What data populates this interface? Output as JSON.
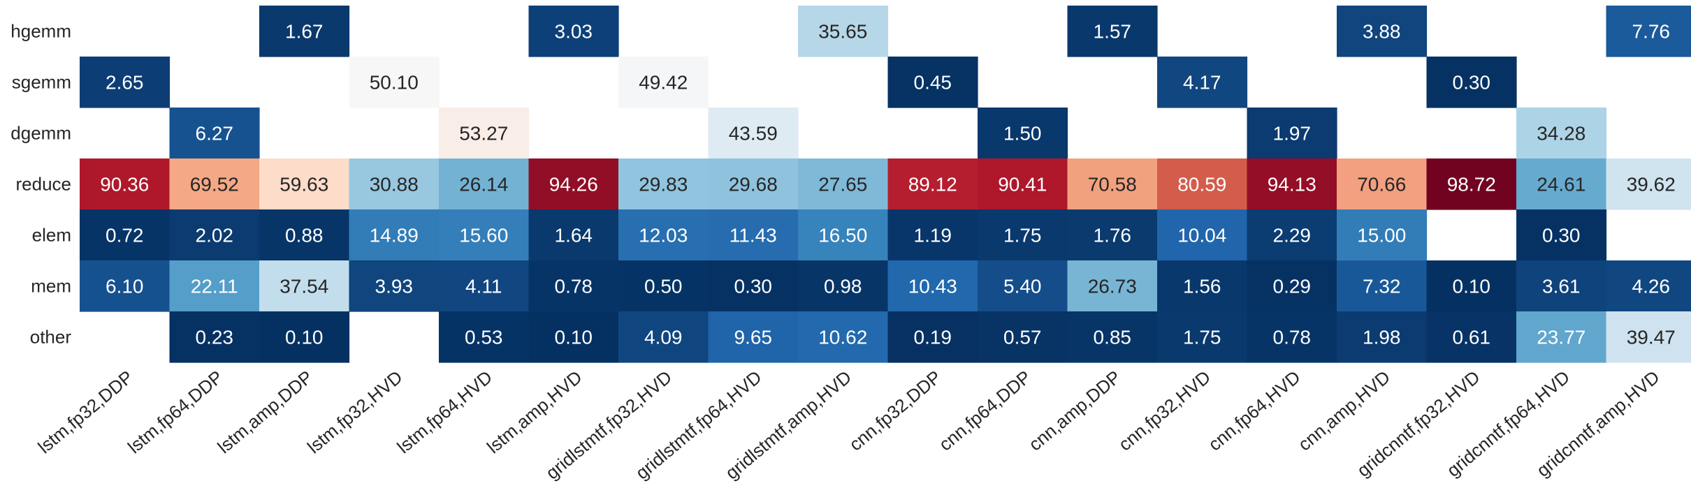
{
  "chart_data": {
    "type": "heatmap",
    "title": "",
    "xlabel": "",
    "ylabel": "",
    "colormap": "RdBu_r",
    "value_range": [
      0,
      100
    ],
    "rows": [
      "hgemm",
      "sgemm",
      "dgemm",
      "reduce",
      "elem",
      "mem",
      "other"
    ],
    "columns": [
      "lstm,fp32,DDP",
      "lstm,fp64,DDP",
      "lstm,amp,DDP",
      "lstm,fp32,HVD",
      "lstm,fp64,HVD",
      "lstm,amp,HVD",
      "gridlstmtf,fp32,HVD",
      "gridlstmtf,fp64,HVD",
      "gridlstmtf,amp,HVD",
      "cnn,fp32,DDP",
      "cnn,fp64,DDP",
      "cnn,amp,DDP",
      "cnn,fp32,HVD",
      "cnn,fp64,HVD",
      "cnn,amp,HVD",
      "gridcnntf,fp32,HVD",
      "gridcnntf,fp64,HVD",
      "gridcnntf,amp,HVD"
    ],
    "values": [
      [
        null,
        null,
        1.67,
        null,
        null,
        3.03,
        null,
        null,
        35.65,
        null,
        null,
        1.57,
        null,
        null,
        3.88,
        null,
        null,
        7.76
      ],
      [
        2.65,
        null,
        null,
        50.1,
        null,
        null,
        49.42,
        null,
        null,
        0.45,
        null,
        null,
        4.17,
        null,
        null,
        0.3,
        null,
        null
      ],
      [
        null,
        6.27,
        null,
        null,
        53.27,
        null,
        null,
        43.59,
        null,
        null,
        1.5,
        null,
        null,
        1.97,
        null,
        null,
        34.28,
        null
      ],
      [
        90.36,
        69.52,
        59.63,
        30.88,
        26.14,
        94.26,
        29.83,
        29.68,
        27.65,
        89.12,
        90.41,
        70.58,
        80.59,
        94.13,
        70.66,
        98.72,
        24.61,
        39.62
      ],
      [
        0.72,
        2.02,
        0.88,
        14.89,
        15.6,
        1.64,
        12.03,
        11.43,
        16.5,
        1.19,
        1.75,
        1.76,
        10.04,
        2.29,
        15.0,
        null,
        0.3,
        null
      ],
      [
        6.1,
        22.11,
        37.54,
        3.93,
        4.11,
        0.78,
        0.5,
        0.3,
        0.98,
        10.43,
        5.4,
        26.73,
        1.56,
        0.29,
        7.32,
        0.1,
        3.61,
        4.26
      ],
      [
        null,
        0.23,
        0.1,
        null,
        0.53,
        0.1,
        4.09,
        9.65,
        10.62,
        0.19,
        0.57,
        0.85,
        1.75,
        0.78,
        1.98,
        0.61,
        23.77,
        39.47
      ]
    ]
  }
}
